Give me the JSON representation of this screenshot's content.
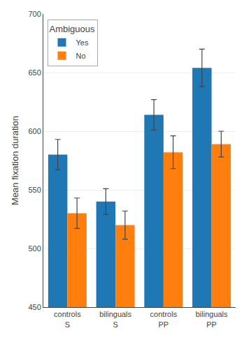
{
  "chart_data": {
    "type": "bar",
    "categories": [
      "controls\nS",
      "bilinguals\nS",
      "controls\nPP",
      "bilinguals\nPP"
    ],
    "series": [
      {
        "name": "Yes",
        "values": [
          580,
          540,
          614,
          654
        ],
        "errors": [
          13,
          11,
          13,
          16
        ]
      },
      {
        "name": "No",
        "values": [
          530,
          520,
          582,
          589
        ],
        "errors": [
          13,
          12,
          14,
          11
        ]
      }
    ],
    "ylabel": "Mean fixation duration",
    "legend_title": "Ambiguous",
    "ylim": [
      450,
      700
    ],
    "yticks": [
      450,
      500,
      550,
      600,
      650,
      700
    ],
    "grid": true,
    "legend": "upper left"
  }
}
